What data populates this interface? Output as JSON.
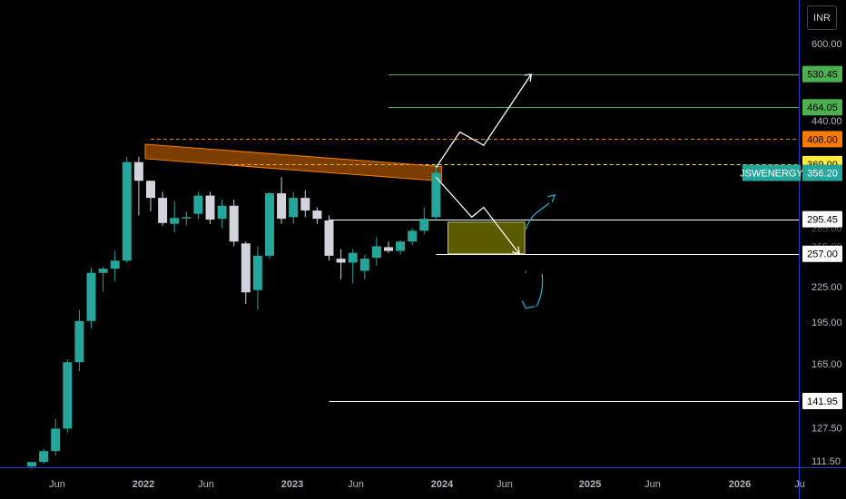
{
  "currency_label": "INR",
  "chart_data": {
    "type": "candlestick",
    "symbol": "JSWENERGY",
    "last_price": 356.2,
    "y_scale": "log",
    "ylim": [
      108,
      640
    ],
    "y_ticks": [
      "600.00",
      "440.00",
      "225.00",
      "195.00",
      "165.00",
      "127.50",
      "111.50"
    ],
    "y_ticks_faded": [
      "285.00",
      "265.00"
    ],
    "x_ticks": [
      {
        "label": "Jun",
        "bold": false
      },
      {
        "label": "2022",
        "bold": true
      },
      {
        "label": "Jun",
        "bold": false
      },
      {
        "label": "2023",
        "bold": true
      },
      {
        "label": "Jun",
        "bold": false
      },
      {
        "label": "2024",
        "bold": true
      },
      {
        "label": "Jun",
        "bold": false
      },
      {
        "label": "2025",
        "bold": true
      },
      {
        "label": "Jun",
        "bold": false
      },
      {
        "label": "2026",
        "bold": true
      },
      {
        "label": "Ju",
        "bold": false
      }
    ],
    "candles": [
      {
        "o": 109,
        "h": 111,
        "l": 108,
        "c": 111
      },
      {
        "o": 111,
        "h": 117,
        "l": 110,
        "c": 116
      },
      {
        "o": 116,
        "h": 132,
        "l": 114,
        "c": 127
      },
      {
        "o": 127,
        "h": 168,
        "l": 125,
        "c": 166
      },
      {
        "o": 166,
        "h": 205,
        "l": 160,
        "c": 196
      },
      {
        "o": 196,
        "h": 243,
        "l": 190,
        "c": 238
      },
      {
        "o": 238,
        "h": 244,
        "l": 221,
        "c": 242
      },
      {
        "o": 242,
        "h": 260,
        "l": 230,
        "c": 250
      },
      {
        "o": 250,
        "h": 380,
        "l": 248,
        "c": 372
      },
      {
        "o": 372,
        "h": 380,
        "l": 300,
        "c": 345
      },
      {
        "o": 345,
        "h": 345,
        "l": 305,
        "c": 322
      },
      {
        "o": 322,
        "h": 330,
        "l": 288,
        "c": 291
      },
      {
        "o": 290,
        "h": 318,
        "l": 280,
        "c": 297
      },
      {
        "o": 297,
        "h": 305,
        "l": 288,
        "c": 298
      },
      {
        "o": 302,
        "h": 330,
        "l": 296,
        "c": 325
      },
      {
        "o": 325,
        "h": 330,
        "l": 290,
        "c": 295
      },
      {
        "o": 296,
        "h": 320,
        "l": 285,
        "c": 312
      },
      {
        "o": 312,
        "h": 320,
        "l": 265,
        "c": 270
      },
      {
        "o": 268,
        "h": 270,
        "l": 210,
        "c": 220
      },
      {
        "o": 222,
        "h": 265,
        "l": 205,
        "c": 255
      },
      {
        "o": 255,
        "h": 330,
        "l": 252,
        "c": 328
      },
      {
        "o": 328,
        "h": 350,
        "l": 290,
        "c": 296
      },
      {
        "o": 298,
        "h": 330,
        "l": 290,
        "c": 322
      },
      {
        "o": 322,
        "h": 332,
        "l": 298,
        "c": 306
      },
      {
        "o": 306,
        "h": 310,
        "l": 290,
        "c": 296
      },
      {
        "o": 294,
        "h": 300,
        "l": 250,
        "c": 255
      },
      {
        "o": 252,
        "h": 262,
        "l": 232,
        "c": 248
      },
      {
        "o": 248,
        "h": 262,
        "l": 228,
        "c": 258
      },
      {
        "o": 240,
        "h": 256,
        "l": 232,
        "c": 252
      },
      {
        "o": 253,
        "h": 275,
        "l": 245,
        "c": 265
      },
      {
        "o": 264,
        "h": 270,
        "l": 258,
        "c": 260
      },
      {
        "o": 260,
        "h": 272,
        "l": 256,
        "c": 270
      },
      {
        "o": 270,
        "h": 285,
        "l": 266,
        "c": 282
      },
      {
        "o": 282,
        "h": 310,
        "l": 278,
        "c": 296
      },
      {
        "o": 298,
        "h": 369,
        "l": 296,
        "c": 356.2
      }
    ],
    "horizontal_levels": [
      {
        "value": 530.45,
        "label": "530.45",
        "line_color": "#4caf50",
        "tag_bg": "#4caf50",
        "tag_fg": "#000000",
        "style": "solid",
        "x_from": "Jun 2023"
      },
      {
        "value": 464.05,
        "label": "464.05",
        "line_color": "#4caf50",
        "tag_bg": "#4caf50",
        "tag_fg": "#000000",
        "style": "solid",
        "x_from": "Jun 2023"
      },
      {
        "value": 408.0,
        "label": "408.00",
        "line_color": "#f57c00",
        "tag_bg": "#f57c00",
        "tag_fg": "#000000",
        "style": "dashed",
        "x_from": "Oct 2021"
      },
      {
        "value": 369.0,
        "label": "369.00",
        "line_color": "#ffeb3b",
        "tag_bg": "#ffeb3b",
        "tag_fg": "#000000",
        "style": "dashed",
        "x_from": "Apr 2022"
      },
      {
        "value": 295.45,
        "label": "295.45",
        "line_color": "#ffffff",
        "tag_bg": "#ffffff",
        "tag_fg": "#000000",
        "style": "solid",
        "x_from": "Jan 2023"
      },
      {
        "value": 257.0,
        "label": "257.00",
        "line_color": "#ffffff",
        "tag_bg": "#ffffff",
        "tag_fg": "#000000",
        "style": "solid",
        "x_from": "Oct 2023"
      },
      {
        "value": 141.95,
        "label": "141.95",
        "line_color": "#ffffff",
        "tag_bg": "#ffffff",
        "tag_fg": "#000000",
        "style": "solid",
        "x_from": "Jan 2023"
      }
    ],
    "colors": {
      "up": "#26a69a",
      "down": "#d1d4dc",
      "background": "#000000",
      "axis_text": "#b2b5be",
      "symbol_tag": "#26a69a",
      "zone_fill": "#808000",
      "resistance_band": "#f57c00",
      "arrow": "#ffffff",
      "sketch": "#29b6d8"
    }
  }
}
